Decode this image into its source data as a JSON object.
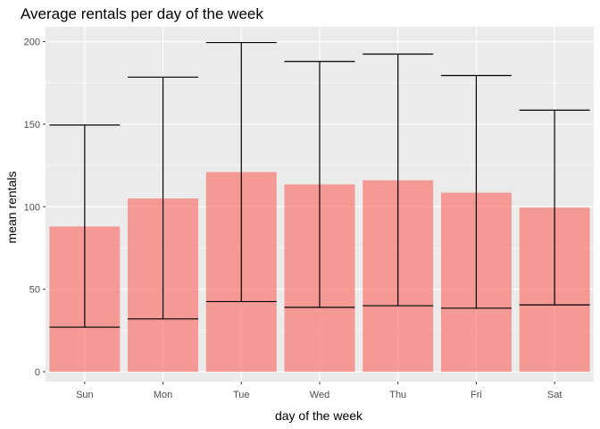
{
  "chart_data": {
    "type": "bar",
    "title": "Average rentals per day of the week",
    "xlabel": "day of the week",
    "ylabel": "mean rentals",
    "categories": [
      "Sun",
      "Mon",
      "Tue",
      "Wed",
      "Thu",
      "Fri",
      "Sat"
    ],
    "values": [
      88,
      105,
      121,
      113.5,
      116,
      108.5,
      99.5
    ],
    "error_bars": {
      "lower": [
        27,
        32,
        42.5,
        39,
        40,
        38.5,
        40.5
      ],
      "upper": [
        149.5,
        178.5,
        199.5,
        188,
        192.5,
        179.5,
        158.5
      ]
    },
    "ylim": [
      -6,
      209
    ],
    "yticks": [
      0,
      50,
      100,
      150,
      200
    ],
    "grid": true,
    "legend": "none",
    "colors": {
      "bar": "#f8766d",
      "panel": "#ebebeb",
      "grid": "#ffffff",
      "errorbar": "#000000"
    }
  }
}
